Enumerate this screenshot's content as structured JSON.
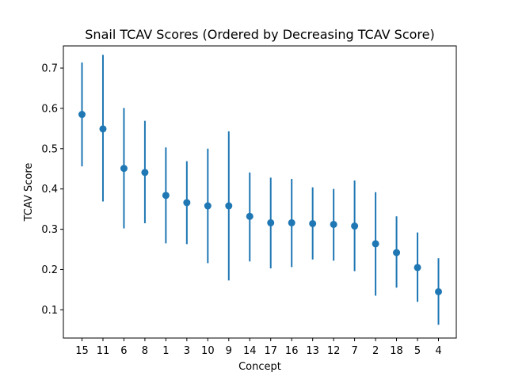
{
  "chart_data": {
    "type": "scatter",
    "title": "Snail TCAV Scores (Ordered by Decreasing TCAV Score)",
    "xlabel": "Concept",
    "ylabel": "TCAV Score",
    "categories": [
      "15",
      "11",
      "6",
      "8",
      "1",
      "3",
      "10",
      "9",
      "14",
      "17",
      "16",
      "13",
      "12",
      "7",
      "2",
      "18",
      "5",
      "4"
    ],
    "values": [
      0.585,
      0.549,
      0.451,
      0.441,
      0.384,
      0.366,
      0.358,
      0.358,
      0.332,
      0.316,
      0.316,
      0.314,
      0.312,
      0.308,
      0.264,
      0.242,
      0.205,
      0.145
    ],
    "error_low": [
      0.456,
      0.369,
      0.302,
      0.315,
      0.265,
      0.263,
      0.216,
      0.173,
      0.22,
      0.203,
      0.206,
      0.225,
      0.222,
      0.196,
      0.135,
      0.155,
      0.12,
      0.063
    ],
    "error_high": [
      0.714,
      0.733,
      0.601,
      0.569,
      0.503,
      0.469,
      0.5,
      0.543,
      0.441,
      0.428,
      0.425,
      0.404,
      0.4,
      0.421,
      0.392,
      0.332,
      0.292,
      0.228
    ],
    "yticks": [
      "0.1",
      "0.2",
      "0.3",
      "0.4",
      "0.5",
      "0.6",
      "0.7"
    ],
    "ylim": [
      0.03,
      0.755
    ],
    "grid": false,
    "color": "#1f77b4"
  }
}
